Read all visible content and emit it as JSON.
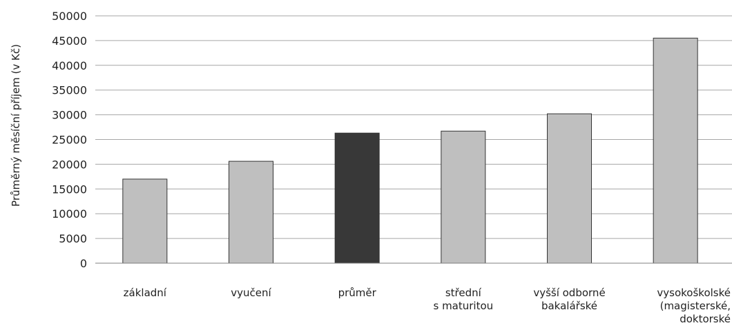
{
  "chart_data": {
    "type": "bar",
    "title": "",
    "xlabel": "",
    "ylabel": "Průměrný měsíční příjem (v Kč)",
    "ylim": [
      0,
      50000
    ],
    "ytick_step": 5000,
    "yticks": [
      "0",
      "5000",
      "10000",
      "15000",
      "20000",
      "25000",
      "30000",
      "35000",
      "40000",
      "45000",
      "50000"
    ],
    "grid": "horizontal",
    "categories": [
      [
        "základní"
      ],
      [
        "vyučení"
      ],
      [
        "průměr"
      ],
      [
        "střední",
        "s maturitou"
      ],
      [
        "vyšší odborné",
        "bakalářské"
      ],
      [
        "vysokoškolské",
        "(magisterské,",
        "doktorské"
      ]
    ],
    "values": [
      17000,
      20600,
      26300,
      26700,
      30200,
      45500
    ],
    "bar_colors": [
      "#bfbfbf",
      "#bfbfbf",
      "#383838",
      "#bfbfbf",
      "#bfbfbf",
      "#bfbfbf"
    ]
  }
}
